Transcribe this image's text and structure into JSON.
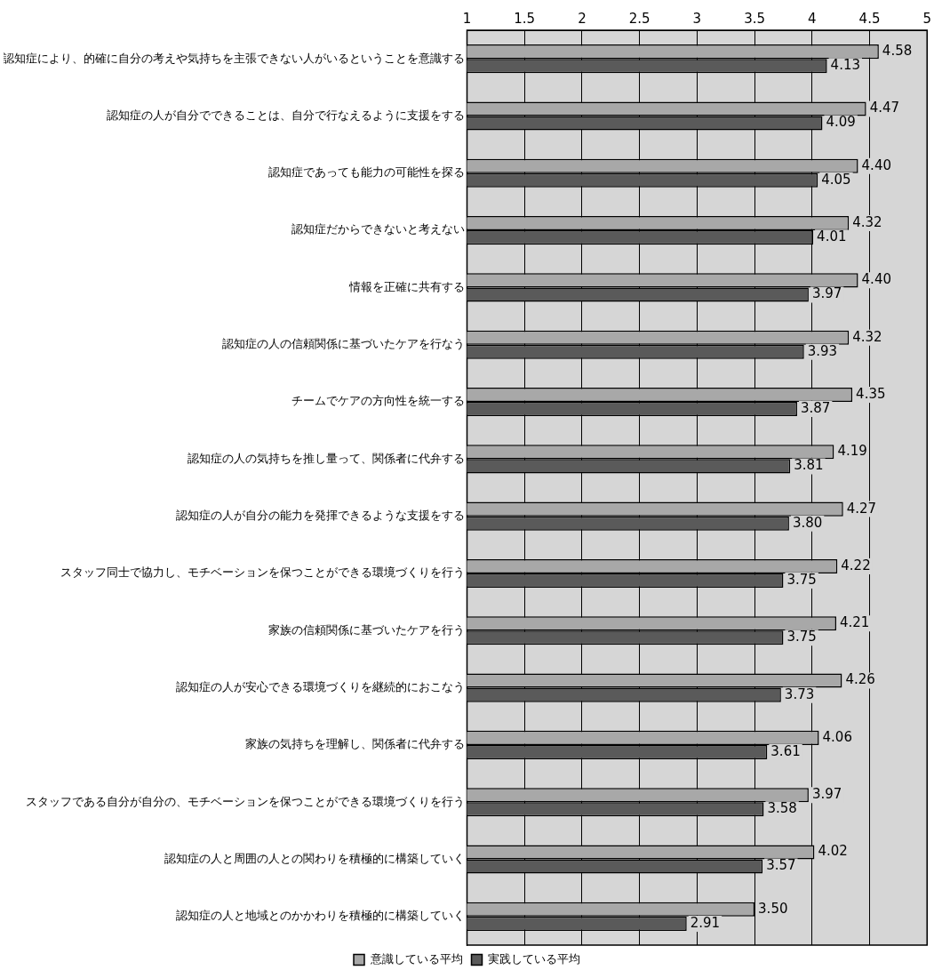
{
  "chart_data": {
    "type": "bar",
    "orientation": "horizontal",
    "categories": [
      "認知症により、的確に自分の考えや気持ちを主張できない人がいるということを意識する",
      "認知症の人が自分でできることは、自分で行なえるように支援をする",
      "認知症であっても能力の可能性を探る",
      "認知症だからできないと考えない",
      "情報を正確に共有する",
      "認知症の人の信頼関係に基づいたケアを行なう",
      "チームでケアの方向性を統一する",
      "認知症の人の気持ちを推し量って、関係者に代弁する",
      "認知症の人が自分の能力を発揮できるような支援をする",
      "スタッフ同士で協力し、モチベーションを保つことができる環境づくりを行う",
      "家族の信頼関係に基づいたケアを行う",
      "認知症の人が安心できる環境づくりを継続的におこなう",
      "家族の気持ちを理解し、関係者に代弁する",
      "スタッフである自分が自分の、モチベーションを保つことができる環境づくりを行う",
      "認知症の人と周囲の人との関わりを積極的に構築していく",
      "認知症の人と地域とのかかわりを積極的に構築していく"
    ],
    "series": [
      {
        "name": "意識している平均",
        "color": "#a8a8a8",
        "values": [
          4.58,
          4.47,
          4.4,
          4.32,
          4.4,
          4.32,
          4.35,
          4.19,
          4.27,
          4.22,
          4.21,
          4.26,
          4.06,
          3.97,
          4.02,
          3.5
        ],
        "value_labels": [
          "4.58",
          "4.47",
          "4.40",
          "4.32",
          "4.40",
          "4.32",
          "4.35",
          "4.19",
          "4.27",
          "4.22",
          "4.21",
          "4.26",
          "4.06",
          "3.97",
          "4.02",
          "3.50"
        ]
      },
      {
        "name": "実践している平均",
        "color": "#5a5a5a",
        "values": [
          4.13,
          4.09,
          4.05,
          4.01,
          3.97,
          3.93,
          3.87,
          3.81,
          3.8,
          3.75,
          3.75,
          3.73,
          3.61,
          3.58,
          3.57,
          2.91
        ],
        "value_labels": [
          "4.13",
          "4.09",
          "4.05",
          "4.01",
          "3.97",
          "3.93",
          "3.87",
          "3.81",
          "3.80",
          "3.75",
          "3.75",
          "3.73",
          "3.61",
          "3.58",
          "3.57",
          "2.91"
        ]
      }
    ],
    "xlim": [
      1,
      5
    ],
    "xticks": [
      1,
      1.5,
      2,
      2.5,
      3,
      3.5,
      4,
      4.5,
      5
    ],
    "grid": "x",
    "legend": "bottom"
  }
}
